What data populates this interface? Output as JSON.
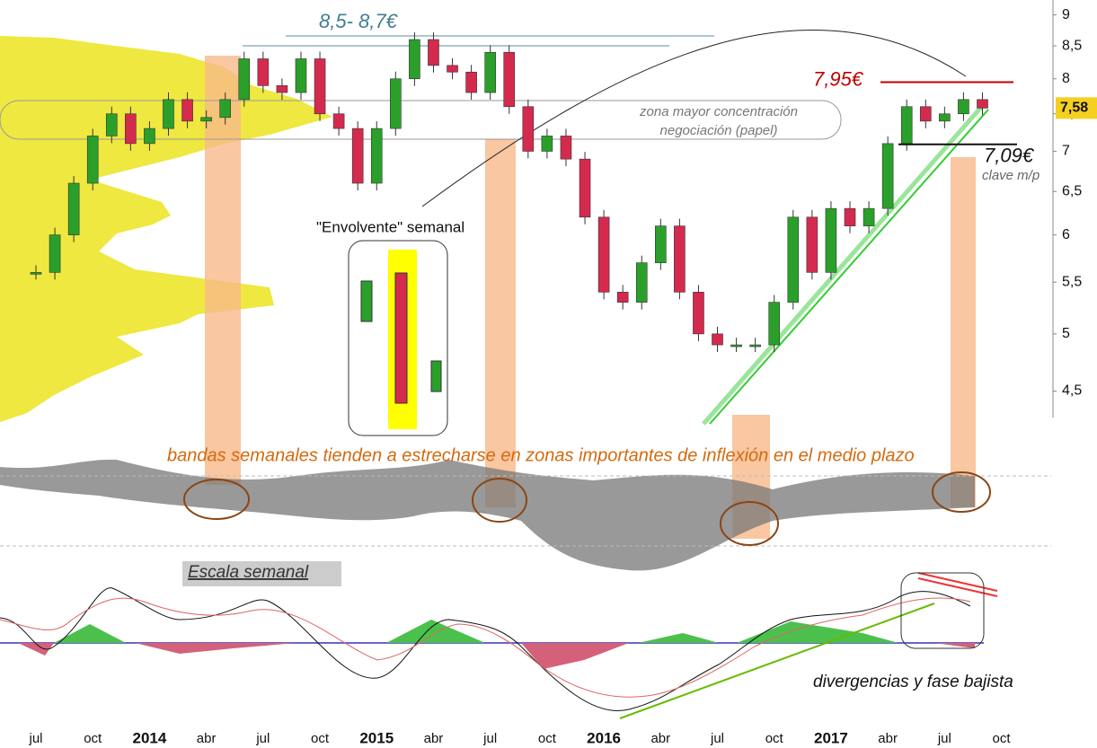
{
  "chart_data": {
    "type": "candlestick",
    "categories": [
      "jul",
      null,
      null,
      "oct",
      null,
      null,
      "2014",
      null,
      null,
      "abr",
      null,
      null,
      "jul",
      null,
      null,
      "oct",
      null,
      null,
      "2015",
      null,
      null,
      "abr",
      null,
      null,
      "jul",
      null,
      null,
      "oct",
      null,
      null,
      "2016",
      null,
      null,
      "abr",
      null,
      null,
      "jul",
      null,
      null,
      "oct",
      null,
      null,
      "2017",
      null,
      null,
      "abr",
      null,
      null,
      "jul",
      null,
      null,
      "oct"
    ],
    "values": [
      5.6,
      6.0,
      6.6,
      7.2,
      7.5,
      7.1,
      7.3,
      7.7,
      7.4,
      7.45,
      7.7,
      8.3,
      7.9,
      7.8,
      8.3,
      7.5,
      7.3,
      6.6,
      7.3,
      8.0,
      8.6,
      8.2,
      8.1,
      7.8,
      8.4,
      7.6,
      7.0,
      7.2,
      6.9,
      6.2,
      5.4,
      5.3,
      5.7,
      6.1,
      5.4,
      5.0,
      4.9,
      4.9,
      4.9,
      5.3,
      6.2,
      5.6,
      6.3,
      6.1,
      6.3,
      7.1,
      7.6,
      7.4,
      7.5,
      7.7,
      7.58,
      null
    ],
    "up_color": "#2aa02a",
    "down_color": "#d42a4e",
    "log_scale": true,
    "ylim": [
      4.3,
      9.25
    ],
    "yticks": [
      {
        "value": 4.5,
        "label": "4,5"
      },
      5,
      {
        "value": 5.5,
        "label": "5,5"
      },
      6,
      {
        "value": 6.5,
        "label": "6,5"
      },
      7,
      {
        "value": 7.5,
        "label": "7,5"
      },
      8,
      {
        "value": 8.5,
        "label": "8,5"
      },
      9
    ],
    "last_value": 7.58,
    "last_value_label": "7,58",
    "levels": [
      {
        "value": 7.95,
        "label": "7,95€",
        "color": "#c00000"
      },
      {
        "value": 7.09,
        "label": "7,09€",
        "color": "#111111"
      }
    ],
    "annotations": [
      "8,5- 8,7€",
      "zona mayor concentración",
      "negociación (papel)",
      "\"Envolvente\" semanal",
      "clave m/p",
      "bandas semanales tienden a estrecharse en zonas importantes de inflexión en el medio plazo",
      "Escala semanal",
      "divergencias y fase bajista"
    ]
  }
}
